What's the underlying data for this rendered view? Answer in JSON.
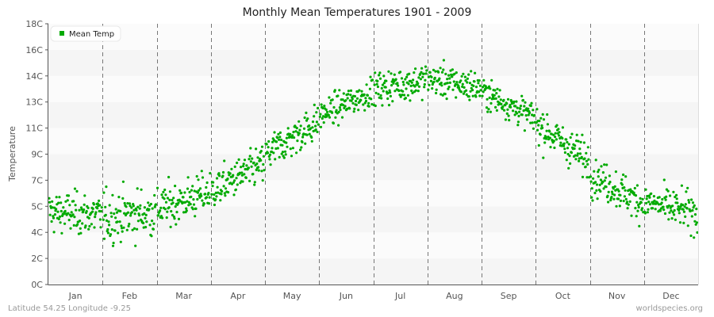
{
  "chart_data": {
    "type": "scatter",
    "title": "Monthly Mean Temperatures 1901 - 2009",
    "xlabel": "",
    "ylabel": "Temperature",
    "categories": [
      "Jan",
      "Feb",
      "Mar",
      "Apr",
      "May",
      "Jun",
      "Jul",
      "Aug",
      "Sep",
      "Oct",
      "Nov",
      "Dec"
    ],
    "yticks": [
      "0C",
      "2C",
      "4C",
      "5C",
      "7C",
      "9C",
      "11C",
      "13C",
      "14C",
      "16C",
      "18C"
    ],
    "ytick_values": [
      0,
      1.8,
      3.6,
      5.4,
      7.2,
      9.0,
      10.8,
      12.6,
      14.4,
      16.2,
      18.0
    ],
    "ylim": [
      0,
      18
    ],
    "grid": "horizontal alternating bands, dashed vertical month separators",
    "legend": {
      "position": "top-left",
      "entries": [
        "Mean Temp"
      ]
    },
    "series": [
      {
        "name": "Mean Temp",
        "color": "#00aa00",
        "points_per_month": 109,
        "monthly_mean": [
          4.9,
          4.8,
          5.8,
          7.4,
          10.1,
          12.5,
          13.8,
          13.9,
          12.4,
          9.8,
          6.6,
          5.3
        ],
        "monthly_spread_sd": [
          1.0,
          1.2,
          1.0,
          0.9,
          0.9,
          0.7,
          0.8,
          0.8,
          0.7,
          0.9,
          0.9,
          0.9
        ],
        "monthly_min": [
          2.0,
          1.1,
          3.9,
          5.5,
          7.6,
          10.6,
          11.3,
          11.4,
          10.4,
          7.4,
          3.1,
          3.1
        ],
        "monthly_max": [
          7.4,
          7.7,
          9.0,
          9.6,
          12.4,
          14.8,
          15.9,
          16.0,
          14.1,
          12.8,
          9.6,
          8.3
        ]
      }
    ]
  },
  "footer": {
    "location": "Latitude 54.25 Longitude -9.25",
    "source": "worldspecies.org"
  },
  "colors": {
    "point": "#00aa00",
    "band_dark": "#f5f5f5",
    "band_light": "#fbfbfb",
    "axis": "#555555",
    "separator": "#777777"
  }
}
